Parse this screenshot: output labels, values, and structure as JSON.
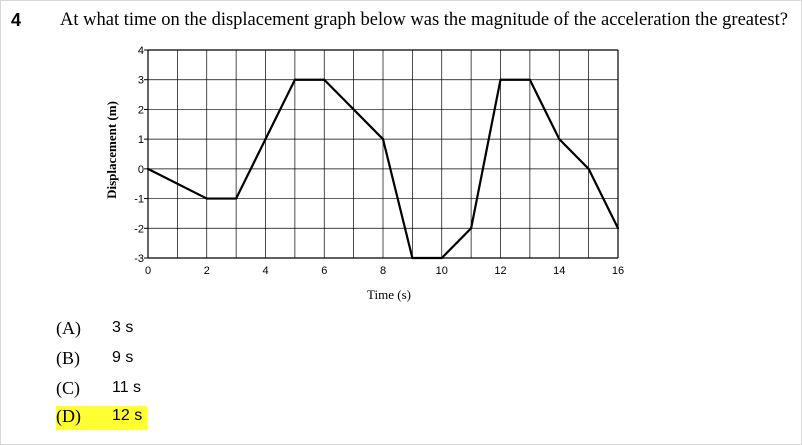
{
  "question": {
    "number": "4",
    "text": "At what time on the displacement graph below was the magnitude of the acceleration the greatest?"
  },
  "choices": [
    {
      "letter": "(A)",
      "answer": "3 s",
      "highlighted": false
    },
    {
      "letter": "(B)",
      "answer": "9 s",
      "highlighted": false
    },
    {
      "letter": "(C)",
      "answer": "11 s",
      "highlighted": false
    },
    {
      "letter": "(D)",
      "answer": "12 s",
      "highlighted": true
    }
  ],
  "colors": {
    "highlight": "#ffff33",
    "grid": "#000000",
    "line": "#000000"
  },
  "chart_data": {
    "type": "line",
    "title": "",
    "xlabel": "Time (s)",
    "ylabel": "Displacement (m)",
    "xlim": [
      0,
      16
    ],
    "ylim": [
      -3,
      4
    ],
    "x_ticks": [
      0,
      2,
      4,
      6,
      8,
      10,
      12,
      14,
      16
    ],
    "x_tick_labels": [
      "0",
      "2",
      "4",
      "6",
      "8",
      "10",
      "12",
      "14",
      "16"
    ],
    "y_ticks": [
      4,
      3,
      2,
      1,
      0,
      -1,
      -2,
      -3
    ],
    "y_tick_labels": [
      "4",
      "3",
      "2",
      "1",
      "0",
      "-1",
      "-2",
      "-3"
    ],
    "grid": true,
    "series": [
      {
        "name": "displacement",
        "x": [
          0,
          2,
          3,
          4,
          5,
          6,
          8,
          9,
          10,
          11,
          12,
          13,
          14,
          15,
          16
        ],
        "y": [
          0,
          -1,
          -1,
          1,
          3,
          3,
          1,
          -3,
          -3,
          -2,
          3,
          3,
          1,
          0,
          -2
        ]
      }
    ]
  }
}
